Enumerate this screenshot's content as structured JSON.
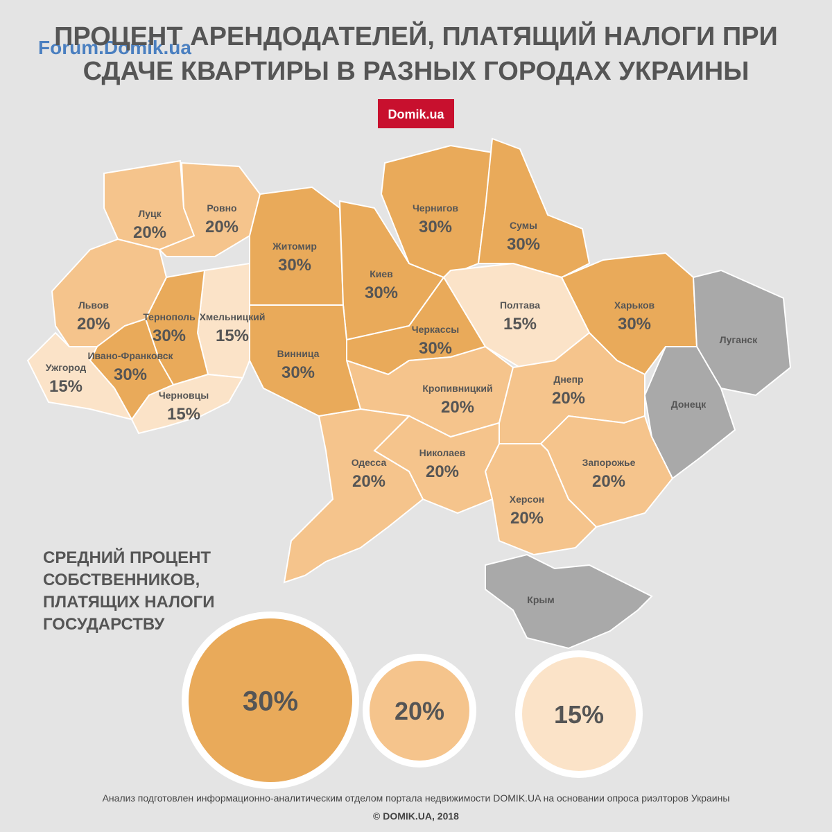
{
  "logo": "Forum.Domik.ua",
  "title": [
    "ПРОЦЕНТ АРЕНДОДАТЕЛЕЙ, ПЛАТЯЩИЙ НАЛОГИ ПРИ",
    "СДАЧЕ КВАРТИРЫ В РАЗНЫХ ГОРОДАХ УКРАИНЫ"
  ],
  "badge": "Domik.ua",
  "regions": [
    {
      "name": "Луцк",
      "value": "20%",
      "color": "#f5c48c"
    },
    {
      "name": "Ровно",
      "value": "20%",
      "color": "#f5c48c"
    },
    {
      "name": "Житомир",
      "value": "30%",
      "color": "#e9aa5a"
    },
    {
      "name": "Киев",
      "value": "30%",
      "color": "#e9aa5a"
    },
    {
      "name": "Чернигов",
      "value": "30%",
      "color": "#e9aa5a"
    },
    {
      "name": "Сумы",
      "value": "30%",
      "color": "#e9aa5a"
    },
    {
      "name": "Харьков",
      "value": "30%",
      "color": "#e9aa5a"
    },
    {
      "name": "Луганск",
      "color": "#a9a9a9"
    },
    {
      "name": "Донецк",
      "color": "#a9a9a9"
    },
    {
      "name": "Полтава",
      "value": "15%",
      "color": "#fbe3c8"
    },
    {
      "name": "Черкассы",
      "value": "30%",
      "color": "#e9aa5a"
    },
    {
      "name": "Кропивницкий",
      "value": "20%",
      "color": "#f5c48c"
    },
    {
      "name": "Днепр",
      "value": "20%",
      "color": "#f5c48c"
    },
    {
      "name": "Запорожье",
      "value": "20%",
      "color": "#f5c48c"
    },
    {
      "name": "Херсон",
      "value": "20%",
      "color": "#f5c48c"
    },
    {
      "name": "Николаев",
      "value": "20%",
      "color": "#f5c48c"
    },
    {
      "name": "Одесса",
      "value": "20%",
      "color": "#f5c48c"
    },
    {
      "name": "Винница",
      "value": "30%",
      "color": "#e9aa5a"
    },
    {
      "name": "Хмельницкий",
      "value": "15%",
      "color": "#fbe3c8"
    },
    {
      "name": "Тернополь",
      "value": "30%",
      "color": "#e9aa5a"
    },
    {
      "name": "Львов",
      "value": "20%",
      "color": "#f5c48c"
    },
    {
      "name": "Ивано-Франковск",
      "value": "30%",
      "color": "#e9aa5a"
    },
    {
      "name": "Черновцы",
      "value": "15%",
      "color": "#fbe3c8"
    },
    {
      "name": "Ужгород",
      "value": "15%",
      "color": "#fbe3c8"
    },
    {
      "name": "Крым",
      "color": "#a9a9a9"
    }
  ],
  "legend": {
    "title": [
      "СРЕДНИЙ ПРОЦЕНТ",
      "СОБСТВЕННИКОВ,",
      "ПЛАТЯЩИХ НАЛОГИ",
      "ГОСУДАРСТВУ"
    ],
    "items": [
      {
        "label": "30%",
        "color": "#e9aa5a"
      },
      {
        "label": "20%",
        "color": "#f5c48c"
      },
      {
        "label": "15%",
        "color": "#fbe3c8"
      }
    ]
  },
  "footer": [
    "Анализ подготовлен информационно-аналитическим отделом портала недвижимости DOMIK.UA на основании опроса риэлторов Украины",
    "©  DOMIK.UA, 2018"
  ]
}
